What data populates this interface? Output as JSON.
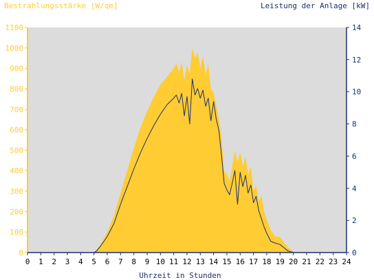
{
  "chart_data": {
    "type": "area",
    "left_title": "Bestrahlungsstärke [W/qm]",
    "right_title": "Leistung der Anlage [kW]",
    "xlabel": "Uhrzeit in Stunden",
    "xlim": [
      0,
      24
    ],
    "x_ticks": [
      "0",
      "1",
      "2",
      "3",
      "4",
      "5",
      "6",
      "7",
      "8",
      "9",
      "10",
      "11",
      "12",
      "13",
      "14",
      "15",
      "16",
      "17",
      "18",
      "19",
      "20",
      "21",
      "22",
      "23",
      "24"
    ],
    "ylim_left": [
      0,
      1100
    ],
    "y_ticks_left": [
      "0",
      "100",
      "200",
      "300",
      "400",
      "500",
      "600",
      "700",
      "800",
      "900",
      "1000",
      "1100"
    ],
    "ylim_right": [
      0,
      14
    ],
    "y_ticks_right": [
      "0",
      "2",
      "4",
      "6",
      "8",
      "10",
      "12",
      "14"
    ],
    "grid": false,
    "colors": {
      "plot_bg": "#dcdcdc",
      "left_axis": "#ffcc33",
      "right_axis": "#1a2f6e",
      "area_fill": "#ffcc33",
      "line": "#1a2f6e"
    },
    "series": [
      {
        "axis": "left",
        "style": "area",
        "x": [
          0,
          5,
          5.2,
          5.5,
          6,
          6.5,
          7,
          7.5,
          8,
          8.5,
          9,
          9.5,
          10,
          10.5,
          11,
          11.2,
          11.4,
          11.6,
          11.8,
          12,
          12.2,
          12.4,
          12.6,
          12.8,
          13,
          13.2,
          13.4,
          13.6,
          13.8,
          14,
          14.2,
          14.4,
          14.6,
          14.8,
          15,
          15.2,
          15.4,
          15.6,
          15.8,
          16,
          16.2,
          16.4,
          16.6,
          16.8,
          17,
          17.2,
          17.4,
          17.6,
          17.8,
          18,
          18.3,
          18.6,
          19,
          19.3,
          19.6,
          20,
          20.3,
          20.6,
          21,
          24
        ],
        "y": [
          0,
          0,
          15,
          40,
          100,
          180,
          290,
          400,
          510,
          610,
          690,
          760,
          820,
          860,
          900,
          925,
          880,
          930,
          840,
          920,
          870,
          1000,
          950,
          980,
          900,
          960,
          870,
          920,
          800,
          780,
          720,
          650,
          560,
          400,
          380,
          350,
          420,
          500,
          440,
          490,
          420,
          470,
          380,
          420,
          300,
          330,
          250,
          280,
          200,
          160,
          110,
          80,
          75,
          50,
          25,
          5,
          0,
          0,
          0,
          0
        ]
      },
      {
        "axis": "right",
        "style": "line",
        "x": [
          0,
          5,
          5.2,
          5.5,
          6,
          6.5,
          7,
          7.5,
          8,
          8.5,
          9,
          9.5,
          10,
          10.5,
          11,
          11.2,
          11.4,
          11.6,
          11.8,
          12,
          12.2,
          12.4,
          12.6,
          12.8,
          13,
          13.2,
          13.4,
          13.6,
          13.8,
          14,
          14.2,
          14.4,
          14.6,
          14.8,
          15,
          15.2,
          15.4,
          15.6,
          15.8,
          16,
          16.2,
          16.4,
          16.6,
          16.8,
          17,
          17.2,
          17.4,
          17.6,
          17.8,
          18,
          18.3,
          18.6,
          19,
          19.3,
          19.6,
          20,
          20.3,
          20.6,
          21,
          24
        ],
        "y": [
          0,
          0,
          0.1,
          0.4,
          1.0,
          1.8,
          3.0,
          4.1,
          5.2,
          6.2,
          7.1,
          7.9,
          8.6,
          9.2,
          9.6,
          9.8,
          9.3,
          9.9,
          8.5,
          9.7,
          8.0,
          10.8,
          9.8,
          10.2,
          9.6,
          10.1,
          9.1,
          9.6,
          8.2,
          9.4,
          8.3,
          7.6,
          6.0,
          4.3,
          3.9,
          3.6,
          4.3,
          5.1,
          3.0,
          5.0,
          4.1,
          4.8,
          3.7,
          4.2,
          3.1,
          3.5,
          2.6,
          2.1,
          1.6,
          1.2,
          0.7,
          0.6,
          0.5,
          0.3,
          0.1,
          0,
          0,
          0,
          0,
          0
        ]
      }
    ]
  }
}
